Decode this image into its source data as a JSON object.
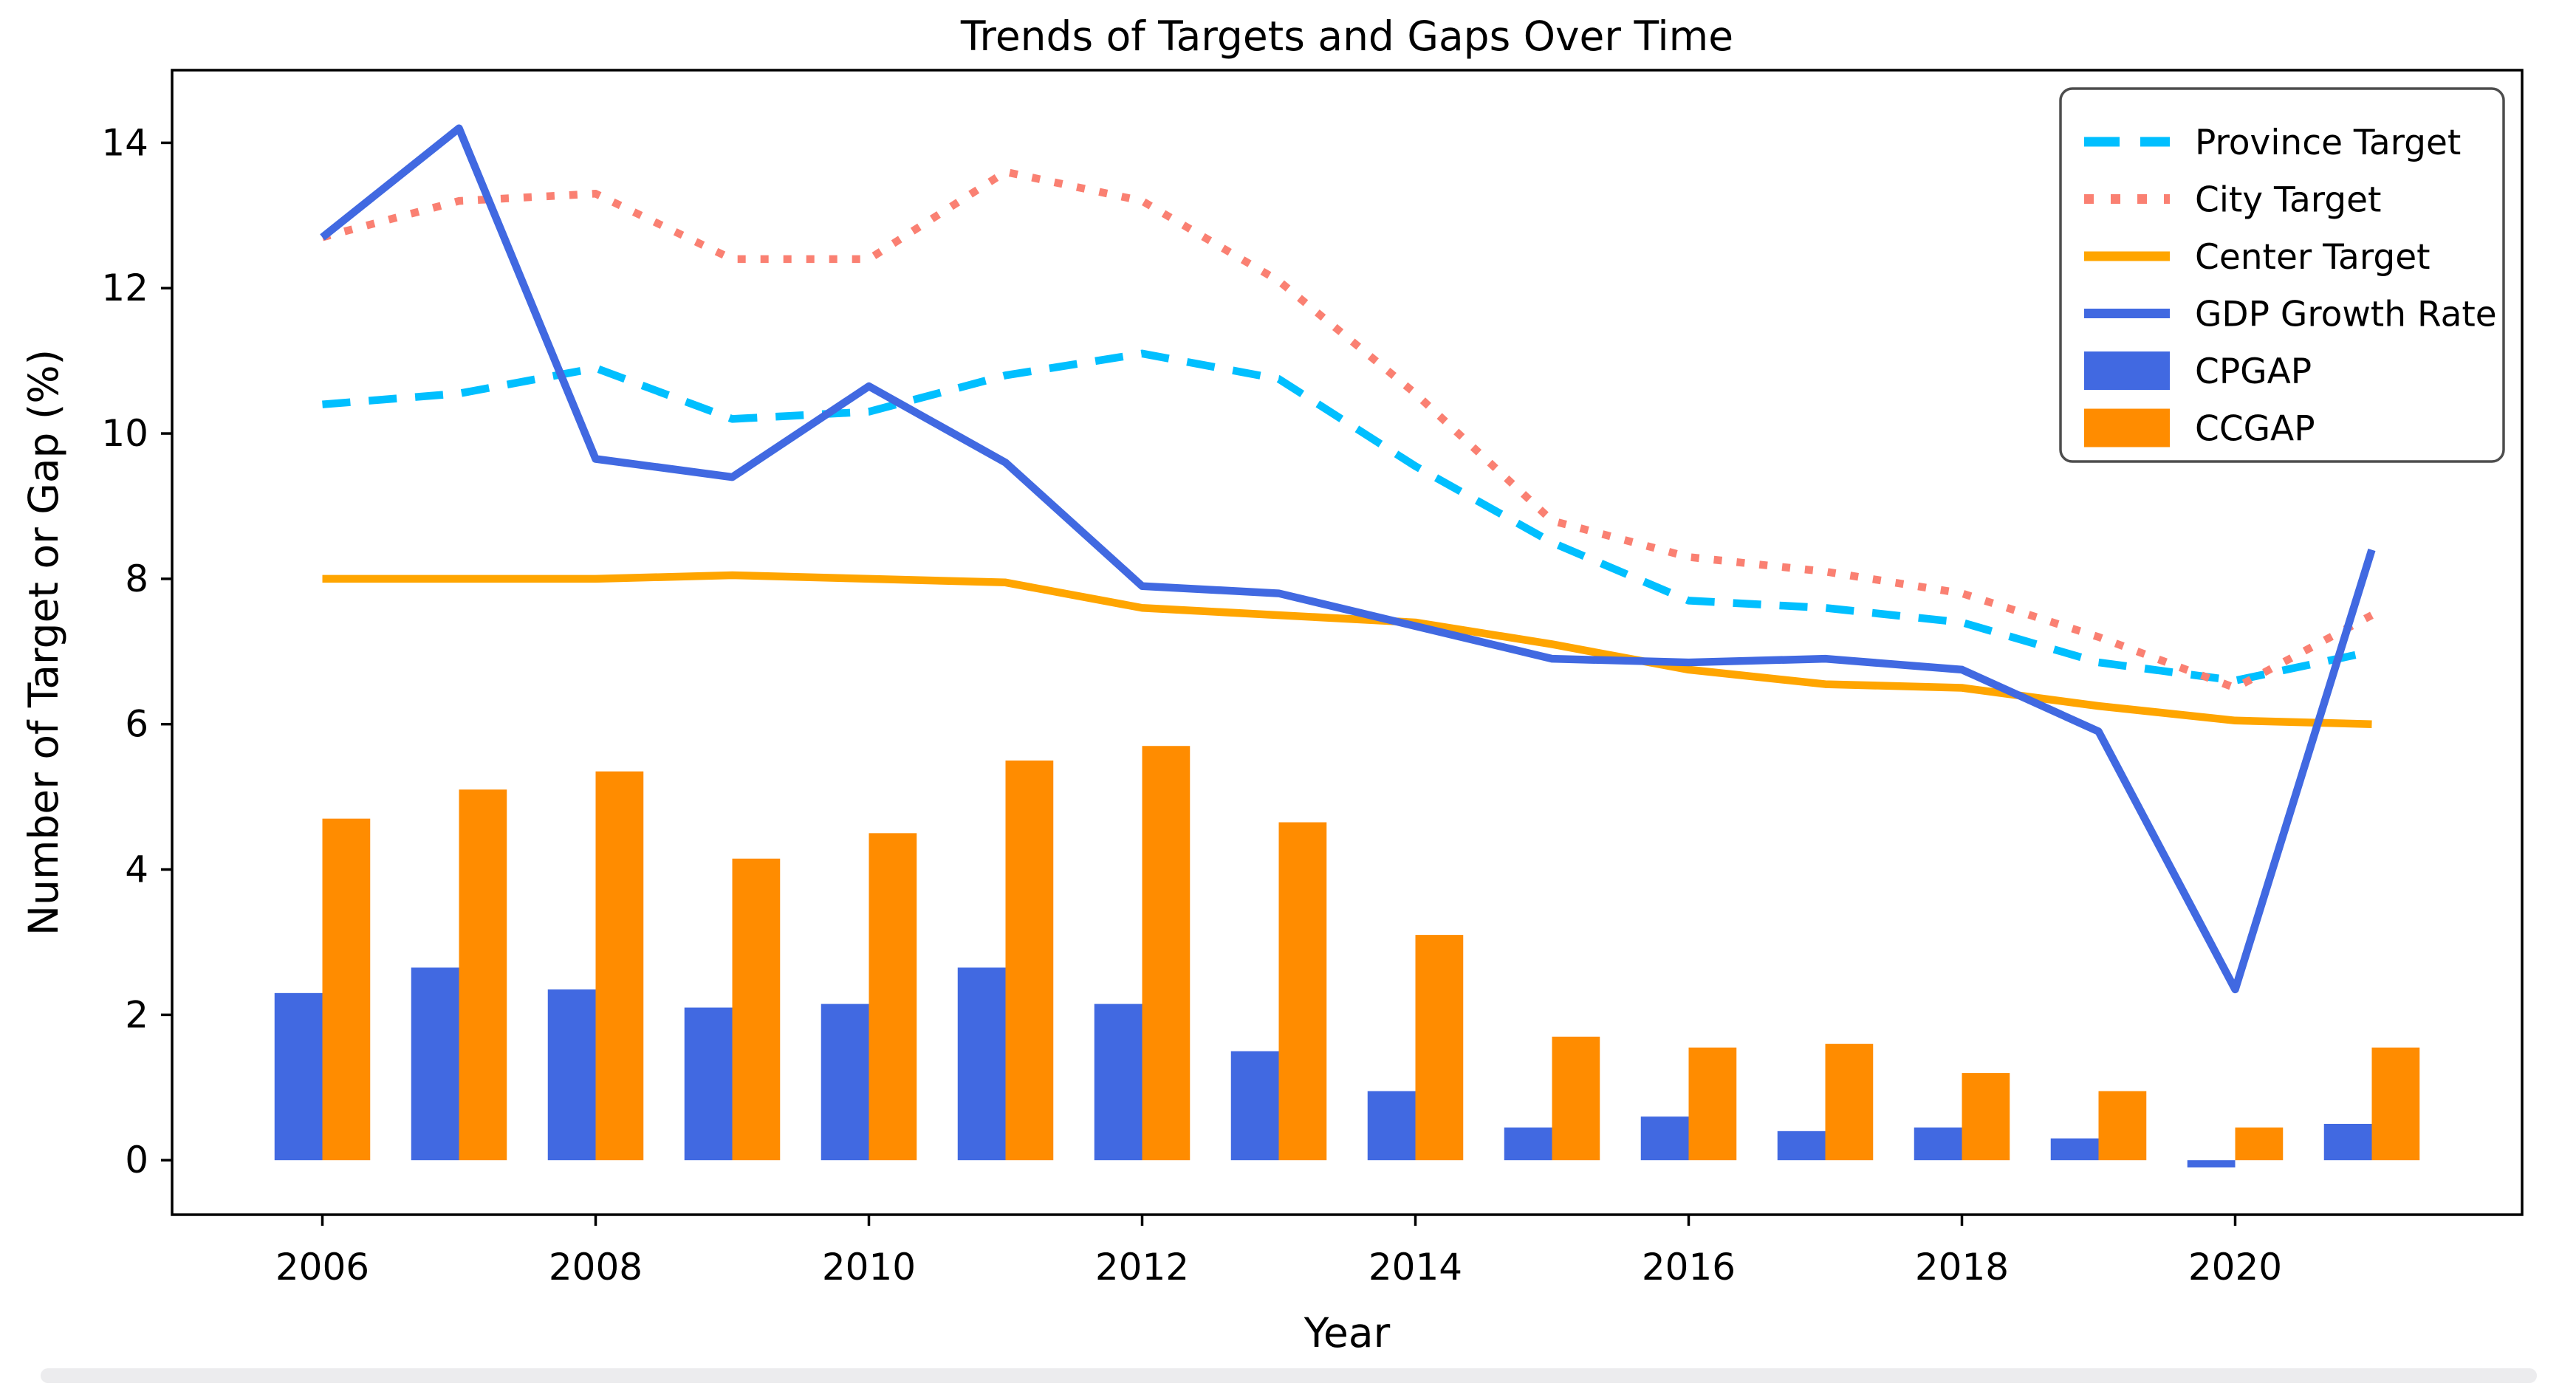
{
  "chart_data": {
    "type": "line+bar",
    "title": "Trends of Targets and Gaps Over Time",
    "xlabel": "Year",
    "ylabel": "Number of Target or Gap (%)",
    "x": [
      2006,
      2007,
      2008,
      2009,
      2010,
      2011,
      2012,
      2013,
      2014,
      2015,
      2016,
      2017,
      2018,
      2019,
      2020,
      2021
    ],
    "series": [
      {
        "name": "Province Target",
        "kind": "line",
        "style": "dashed",
        "color": "#00bfff",
        "values": [
          10.4,
          10.55,
          10.9,
          10.2,
          10.3,
          10.8,
          11.1,
          10.75,
          9.55,
          8.5,
          7.7,
          7.6,
          7.4,
          6.85,
          6.6,
          7.0
        ]
      },
      {
        "name": "City Target",
        "kind": "line",
        "style": "dotted",
        "color": "#fa8072",
        "values": [
          12.7,
          13.2,
          13.3,
          12.4,
          12.4,
          13.6,
          13.2,
          12.1,
          10.55,
          8.8,
          8.3,
          8.1,
          7.8,
          7.2,
          6.5,
          7.5
        ]
      },
      {
        "name": "Center Target",
        "kind": "line",
        "style": "solid",
        "color": "#ffa500",
        "values": [
          8.0,
          8.0,
          8.0,
          8.05,
          8.0,
          7.95,
          7.6,
          7.5,
          7.4,
          7.1,
          6.75,
          6.55,
          6.5,
          6.25,
          6.05,
          6.0
        ]
      },
      {
        "name": "GDP Growth Rate",
        "kind": "line",
        "style": "solid",
        "color": "#4169e1",
        "values": [
          12.7,
          14.2,
          9.65,
          9.4,
          10.65,
          9.6,
          7.9,
          7.8,
          7.35,
          6.9,
          6.85,
          6.9,
          6.75,
          5.9,
          2.35,
          8.4
        ]
      },
      {
        "name": "CPGAP",
        "kind": "bar",
        "color": "#4169e1",
        "values": [
          2.3,
          2.65,
          2.35,
          2.1,
          2.15,
          2.65,
          2.15,
          1.5,
          0.95,
          0.45,
          0.6,
          0.4,
          0.45,
          0.3,
          -0.1,
          0.5
        ]
      },
      {
        "name": "CCGAP",
        "kind": "bar",
        "color": "#ff8c00",
        "values": [
          4.7,
          5.1,
          5.35,
          4.15,
          4.5,
          5.5,
          5.7,
          4.65,
          3.1,
          1.7,
          1.55,
          1.6,
          1.2,
          0.95,
          0.45,
          1.55
        ]
      }
    ],
    "bar_width": 0.35,
    "xticks": [
      "2006",
      "2008",
      "2010",
      "2012",
      "2014",
      "2016",
      "2018",
      "2020"
    ],
    "xtick_values": [
      2006,
      2008,
      2010,
      2012,
      2014,
      2016,
      2018,
      2020
    ],
    "yticks": [
      "0",
      "2",
      "4",
      "6",
      "8",
      "10",
      "12",
      "14"
    ],
    "ytick_values": [
      0,
      2,
      4,
      6,
      8,
      10,
      12,
      14
    ],
    "xlim": [
      2004.9,
      2022.1
    ],
    "ylim": [
      -0.75,
      15.0
    ],
    "grid": false,
    "legend_position": "upper right",
    "legend_entries": [
      "Province Target",
      "City Target",
      "Center Target",
      "GDP Growth Rate",
      "CPGAP",
      "CCGAP"
    ]
  },
  "colors": {
    "axes": "#000000",
    "legend_border": "#4d4d4d",
    "background": "#ffffff",
    "scrollbar_track": "#ececee"
  }
}
